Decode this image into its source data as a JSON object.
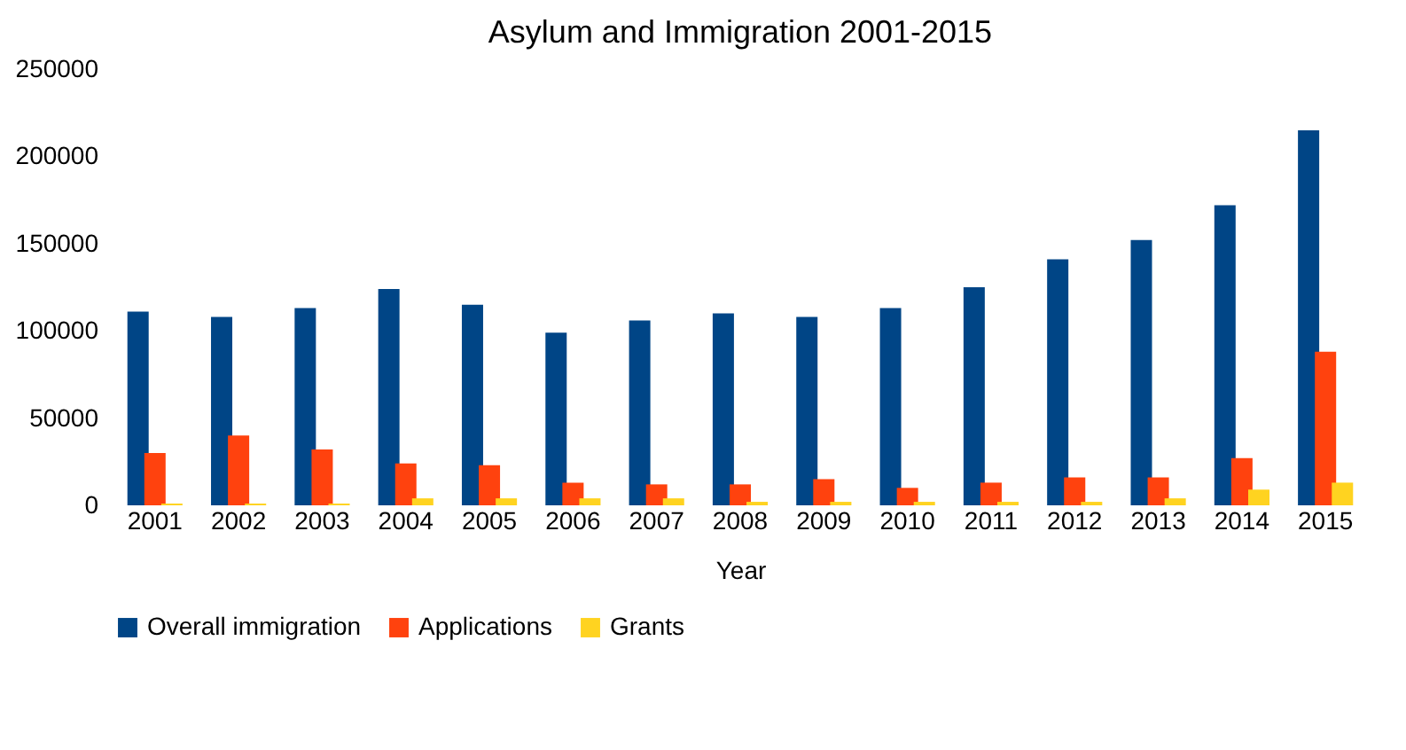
{
  "chart_data": {
    "type": "bar",
    "title": "Asylum and Immigration 2001-2015",
    "xlabel": "Year",
    "categories": [
      "2001",
      "2002",
      "2003",
      "2004",
      "2005",
      "2006",
      "2007",
      "2008",
      "2009",
      "2010",
      "2011",
      "2012",
      "2013",
      "2014",
      "2015"
    ],
    "series": [
      {
        "name": "Overall immigration",
        "color": "#004586",
        "values": [
          111000,
          108000,
          113000,
          124000,
          115000,
          99000,
          106000,
          110000,
          108000,
          113000,
          125000,
          141000,
          152000,
          172000,
          215000
        ]
      },
      {
        "name": "Applications",
        "color": "#ff420e",
        "values": [
          30000,
          40000,
          32000,
          24000,
          23000,
          13000,
          12000,
          12000,
          15000,
          10000,
          13000,
          16000,
          16000,
          27000,
          88000
        ]
      },
      {
        "name": "Grants",
        "color": "#ffd320",
        "values": [
          1000,
          1000,
          1000,
          4000,
          4000,
          4000,
          4000,
          2000,
          2000,
          2000,
          2000,
          2000,
          4000,
          9000,
          13000
        ]
      }
    ],
    "ylim": [
      0,
      250000
    ],
    "yticks": [
      0,
      50000,
      100000,
      150000,
      200000,
      250000
    ],
    "grid": false,
    "legend": "bottom"
  }
}
